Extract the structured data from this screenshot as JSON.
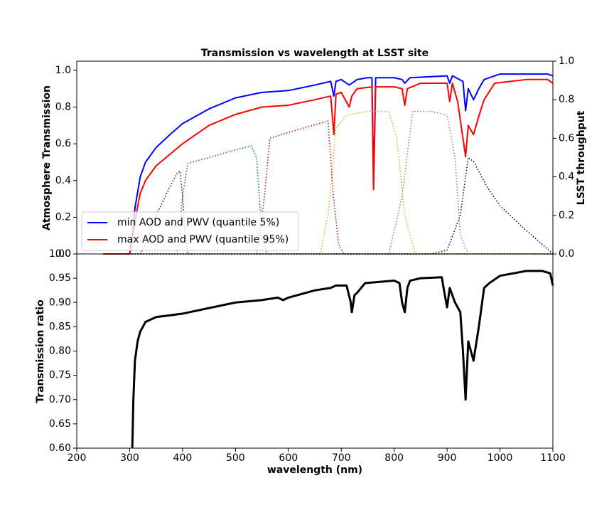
{
  "chart_data": [
    {
      "type": "line",
      "title": "Transmission vs wavelength at LSST site",
      "y_label": "Atmosphere Transmission",
      "y2_label": "LSST throughput",
      "xlim": [
        200,
        1100
      ],
      "ylim": [
        0,
        1.05
      ],
      "y2lim": [
        0,
        1.0
      ],
      "yticks": [
        {
          "value": 0,
          "label": "0.0"
        },
        0.2,
        0.4,
        0.6,
        0.8,
        {
          "value": 1,
          "label": "1.0"
        }
      ],
      "y2ticks": [
        {
          "value": 0,
          "label": "0.0"
        },
        0.2,
        0.4,
        0.6,
        0.8,
        {
          "value": 1,
          "label": "1.0"
        }
      ],
      "legend": "lower left",
      "series": [
        {
          "name": "min AOD and PWV (quantile 5%)",
          "color": "#0000ff",
          "dash": "solid",
          "linewidth": 2,
          "x": [
            250,
            300,
            305,
            310,
            320,
            330,
            350,
            380,
            400,
            450,
            500,
            550,
            600,
            650,
            680,
            686,
            690,
            700,
            715,
            720,
            730,
            750,
            758,
            761,
            765,
            800,
            815,
            820,
            830,
            900,
            905,
            910,
            930,
            935,
            940,
            950,
            960,
            970,
            1000,
            1050,
            1090,
            1100
          ],
          "values": [
            0,
            0,
            0.1,
            0.25,
            0.42,
            0.5,
            0.58,
            0.66,
            0.71,
            0.79,
            0.85,
            0.88,
            0.89,
            0.92,
            0.94,
            0.86,
            0.94,
            0.95,
            0.92,
            0.93,
            0.95,
            0.96,
            0.96,
            0.4,
            0.96,
            0.96,
            0.95,
            0.93,
            0.96,
            0.97,
            0.93,
            0.97,
            0.94,
            0.78,
            0.9,
            0.84,
            0.9,
            0.95,
            0.98,
            0.98,
            0.98,
            0.97
          ]
        },
        {
          "name": "max AOD and PWV (quantile 95%)",
          "color": "#ff0000",
          "dash": "solid",
          "linewidth": 2,
          "x": [
            250,
            300,
            305,
            310,
            320,
            330,
            350,
            400,
            450,
            500,
            550,
            600,
            650,
            680,
            686,
            690,
            700,
            715,
            720,
            730,
            758,
            761,
            765,
            800,
            815,
            820,
            825,
            850,
            900,
            905,
            910,
            920,
            935,
            940,
            950,
            960,
            970,
            990,
            1050,
            1090,
            1100
          ],
          "values": [
            0,
            0,
            0.07,
            0.18,
            0.33,
            0.4,
            0.48,
            0.6,
            0.7,
            0.76,
            0.8,
            0.81,
            0.84,
            0.86,
            0.65,
            0.87,
            0.88,
            0.8,
            0.86,
            0.9,
            0.91,
            0.35,
            0.91,
            0.91,
            0.9,
            0.81,
            0.9,
            0.93,
            0.93,
            0.83,
            0.93,
            0.83,
            0.53,
            0.7,
            0.65,
            0.75,
            0.84,
            0.93,
            0.95,
            0.95,
            0.93
          ]
        },
        {
          "color": "#0000aa",
          "dash": "dotted",
          "linewidth": 1.5,
          "axis": "y2",
          "x": [
            250,
            320,
            330,
            350,
            380,
            390,
            395,
            400,
            405,
            410,
            1100
          ],
          "values": [
            0,
            0,
            0.05,
            0.2,
            0.37,
            0.42,
            0.43,
            0.3,
            0.1,
            0,
            0
          ]
        },
        {
          "color": "#008000",
          "dash": "dotted",
          "linewidth": 1.5,
          "axis": "y2",
          "x": [
            250,
            390,
            400,
            410,
            450,
            500,
            530,
            540,
            550,
            560,
            1100
          ],
          "values": [
            0,
            0,
            0.3,
            0.47,
            0.5,
            0.54,
            0.56,
            0.5,
            0.1,
            0,
            0
          ]
        },
        {
          "color": "#cc0000",
          "dash": "dotted",
          "linewidth": 1.5,
          "axis": "y2",
          "x": [
            250,
            540,
            555,
            565,
            600,
            650,
            675,
            685,
            695,
            705,
            1100
          ],
          "values": [
            0,
            0,
            0.3,
            0.6,
            0.63,
            0.67,
            0.69,
            0.3,
            0.05,
            0,
            0
          ]
        },
        {
          "color": "#bcbd22",
          "dash": "dotted",
          "linewidth": 1.5,
          "axis": "y2",
          "x": [
            250,
            660,
            675,
            690,
            710,
            750,
            790,
            805,
            820,
            840,
            1100
          ],
          "values": [
            0,
            0,
            0.2,
            0.65,
            0.72,
            0.74,
            0.74,
            0.6,
            0.2,
            0,
            0
          ]
        },
        {
          "color": "#808080",
          "dash": "dotted",
          "linewidth": 1.5,
          "axis": "y2",
          "x": [
            250,
            790,
            815,
            835,
            870,
            900,
            915,
            925,
            940,
            1100
          ],
          "values": [
            0,
            0,
            0.3,
            0.74,
            0.74,
            0.72,
            0.5,
            0.1,
            0,
            0
          ]
        },
        {
          "color": "#000000",
          "dash": "dotted",
          "linewidth": 1.5,
          "axis": "y2",
          "x": [
            250,
            870,
            900,
            925,
            940,
            950,
            975,
            1000,
            1050,
            1080,
            1100
          ],
          "values": [
            0,
            0,
            0.02,
            0.2,
            0.5,
            0.48,
            0.35,
            0.25,
            0.12,
            0.05,
            0
          ]
        }
      ]
    },
    {
      "type": "line",
      "x_label": "wavelength (nm)",
      "y_label": "Transmission ratio",
      "xlim": [
        200,
        1100
      ],
      "xticks": [
        200,
        300,
        400,
        500,
        600,
        700,
        800,
        900,
        1000,
        1100
      ],
      "ylim": [
        0.6,
        1.0
      ],
      "yticks": [
        {
          "value": 0.6,
          "label": "0.60"
        },
        0.65,
        {
          "value": 0.7,
          "label": "0.70"
        },
        0.75,
        {
          "value": 0.8,
          "label": "0.80"
        },
        0.85,
        {
          "value": 0.9,
          "label": "0.90"
        },
        0.95,
        {
          "value": 1,
          "label": "1.00"
        }
      ],
      "series": [
        {
          "color": "#000000",
          "dash": "solid",
          "linewidth": 3,
          "x": [
            305,
            307,
            310,
            315,
            320,
            330,
            350,
            400,
            500,
            550,
            580,
            590,
            600,
            650,
            680,
            690,
            710,
            718,
            720,
            725,
            730,
            745,
            800,
            810,
            815,
            820,
            825,
            830,
            850,
            890,
            895,
            900,
            905,
            915,
            925,
            930,
            935,
            940,
            950,
            960,
            970,
            980,
            1000,
            1050,
            1080,
            1095,
            1100
          ],
          "values": [
            0.6,
            0.7,
            0.78,
            0.82,
            0.84,
            0.86,
            0.87,
            0.877,
            0.9,
            0.905,
            0.91,
            0.905,
            0.91,
            0.925,
            0.93,
            0.935,
            0.935,
            0.9,
            0.88,
            0.915,
            0.92,
            0.94,
            0.945,
            0.94,
            0.9,
            0.88,
            0.93,
            0.945,
            0.95,
            0.952,
            0.92,
            0.89,
            0.93,
            0.9,
            0.88,
            0.8,
            0.7,
            0.82,
            0.78,
            0.85,
            0.93,
            0.94,
            0.955,
            0.965,
            0.965,
            0.96,
            0.935
          ]
        }
      ]
    }
  ]
}
